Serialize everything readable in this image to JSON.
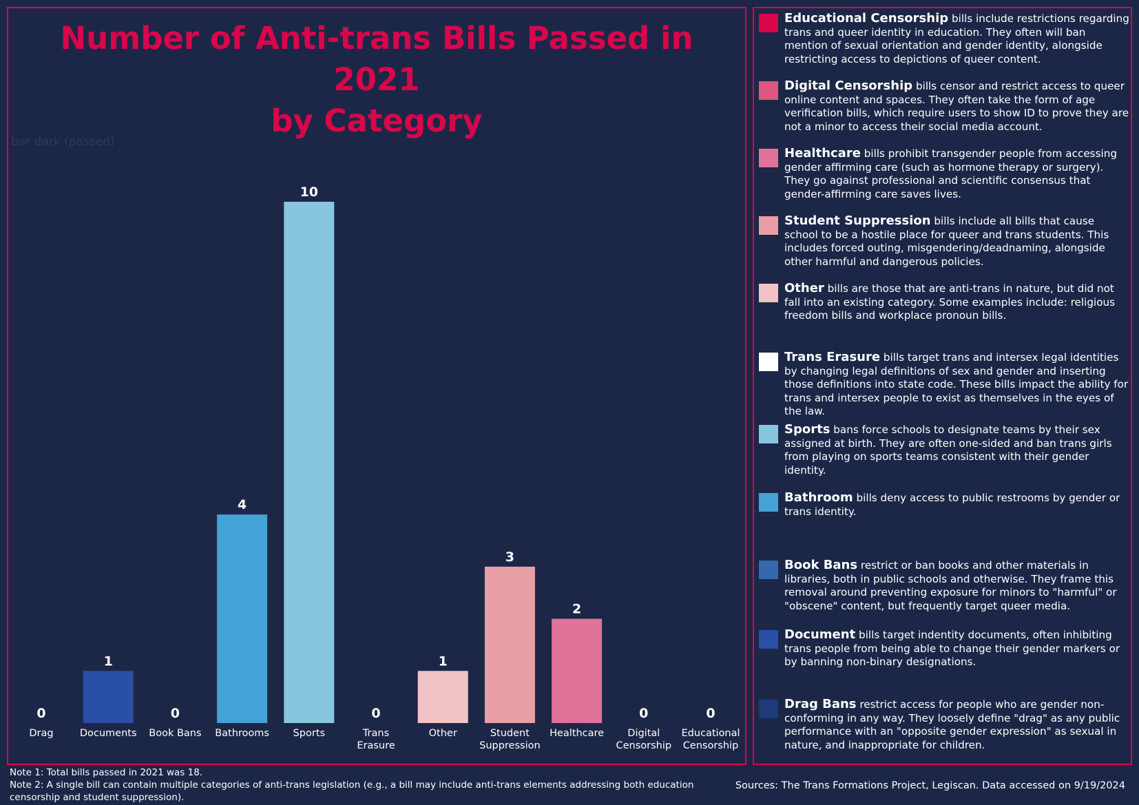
{
  "chart_data": {
    "type": "bar",
    "title": "Number of Anti-trans Bills Passed in 2021 by Category",
    "title_lines": [
      "Number of Anti-trans Bills Passed in 2021",
      "by Category"
    ],
    "xlabel": "",
    "ylabel": "",
    "ylim": [
      0,
      10
    ],
    "grid": false,
    "categories": [
      {
        "lines": [
          "Drag"
        ],
        "value": 0,
        "color": "#1f3a7a"
      },
      {
        "lines": [
          "Documents"
        ],
        "value": 1,
        "color": "#2a4fa6"
      },
      {
        "lines": [
          "Book Bans"
        ],
        "value": 0,
        "color": "#3469b0"
      },
      {
        "lines": [
          "Bathrooms"
        ],
        "value": 4,
        "color": "#45a2d6"
      },
      {
        "lines": [
          "Sports"
        ],
        "value": 10,
        "color": "#88c6de"
      },
      {
        "lines": [
          "Trans",
          "Erasure"
        ],
        "value": 0,
        "color": "#ffffff"
      },
      {
        "lines": [
          "Other"
        ],
        "value": 1,
        "color": "#f2c3c6"
      },
      {
        "lines": [
          "Student",
          "Suppression"
        ],
        "value": 3,
        "color": "#e99ea6"
      },
      {
        "lines": [
          "Healthcare"
        ],
        "value": 2,
        "color": "#e0739a"
      },
      {
        "lines": [
          "Digital",
          "Censorship"
        ],
        "value": 0,
        "color": "#de5783"
      },
      {
        "lines": [
          "Educational",
          "Censorship"
        ],
        "value": 0,
        "color": "#d9064a"
      }
    ],
    "ghost_label": "bar dark (passed)"
  },
  "legend": [
    {
      "name": "Educational Censorship",
      "color": "#d9064a",
      "desc": " bills include restrictions regarding trans and queer identity in education.  They often will ban mention of sexual orientation and gender identity, alongside restricting access to depictions of queer content."
    },
    {
      "name": "Digital Censorship",
      "color": "#de5783",
      "desc": " bills censor and restrict access to queer online content and spaces.  They often take the form of age verification bills, which require users to show ID to prove they are not a minor to access their social media account."
    },
    {
      "name": "Healthcare",
      "color": "#e0739a",
      "desc": " bills prohibit transgender people from accessing gender affirming care (such as hormone therapy or surgery).  They go against professional and scientific consensus that gender-affirming care saves lives."
    },
    {
      "name": "Student Suppression",
      "color": "#e99ea6",
      "desc": " bills include all bills that cause school to be a hostile place for queer and trans students.  This includes forced outing, misgendering/deadnaming, alongside other harmful and dangerous policies."
    },
    {
      "name": "Other",
      "color": "#f2c3c6",
      "desc": " bills are those that are anti-trans in nature, but did not fall into an existing category.  Some examples include: religious freedom bills and workplace pronoun bills."
    },
    {
      "name": "Trans Erasure",
      "color": "#ffffff",
      "desc": " bills target trans and intersex legal identities by changing legal definitions of sex and gender and inserting those definitions into state code.  These bills impact the ability for trans and intersex people to exist as themselves in the eyes of the law."
    },
    {
      "name": "Sports",
      "color": "#88c6de",
      "desc": " bans force schools to designate teams by their sex assigned at birth.  They are often one-sided and ban trans girls from playing on sports teams consistent with their gender identity."
    },
    {
      "name": "Bathroom",
      "color": "#45a2d6",
      "desc": " bills deny access to public restrooms by gender or trans identity."
    },
    {
      "name": "Book Bans",
      "color": "#3469b0",
      "desc": " restrict or ban books and other materials in libraries, both in public schools and otherwise.  They frame this removal around preventing exposure for minors to \"harmful\" or \"obscene\" content, but frequently target queer media."
    },
    {
      "name": "Document",
      "color": "#2a4fa6",
      "desc": " bills target indentity documents, often inhibiting trans people from being able to change their gender markers or by banning non-binary designations."
    },
    {
      "name": "Drag Bans",
      "color": "#1f3a7a",
      "desc": " restrict access for people who are gender non-conforming in any way.  They loosely define \"drag\" as any public performance with an \"opposite gender expression\" as sexual in nature, and inappropriate for children."
    }
  ],
  "notes": {
    "note1": "Note 1: Total bills passed in 2021 was 18.",
    "note2": "Note 2: A single bill can contain multiple categories of anti-trans legislation (e.g., a bill may include anti-trans elements addressing both education censorship and student suppression)."
  },
  "sources": "Sources: The Trans Formations Project, Legiscan.  Data accessed on 9/19/2024"
}
